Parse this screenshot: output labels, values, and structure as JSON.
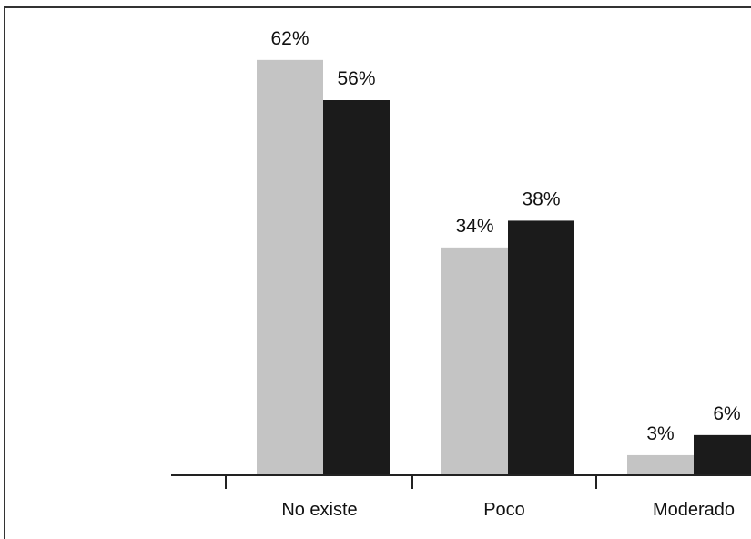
{
  "chart_data": {
    "type": "bar",
    "categories": [
      "No existe",
      "Poco",
      "Moderado"
    ],
    "series": [
      {
        "values": [
          62,
          34,
          3
        ],
        "labels": [
          "62%",
          "34%",
          "3%"
        ],
        "color": "#c4c4c4"
      },
      {
        "values": [
          56,
          38,
          6
        ],
        "labels": [
          "56%",
          "38%",
          "6%"
        ],
        "color": "#1b1b1b"
      }
    ],
    "title": "",
    "xlabel": "",
    "ylabel": "",
    "ylim": [
      0,
      70
    ],
    "grid": false,
    "legend": "none"
  }
}
